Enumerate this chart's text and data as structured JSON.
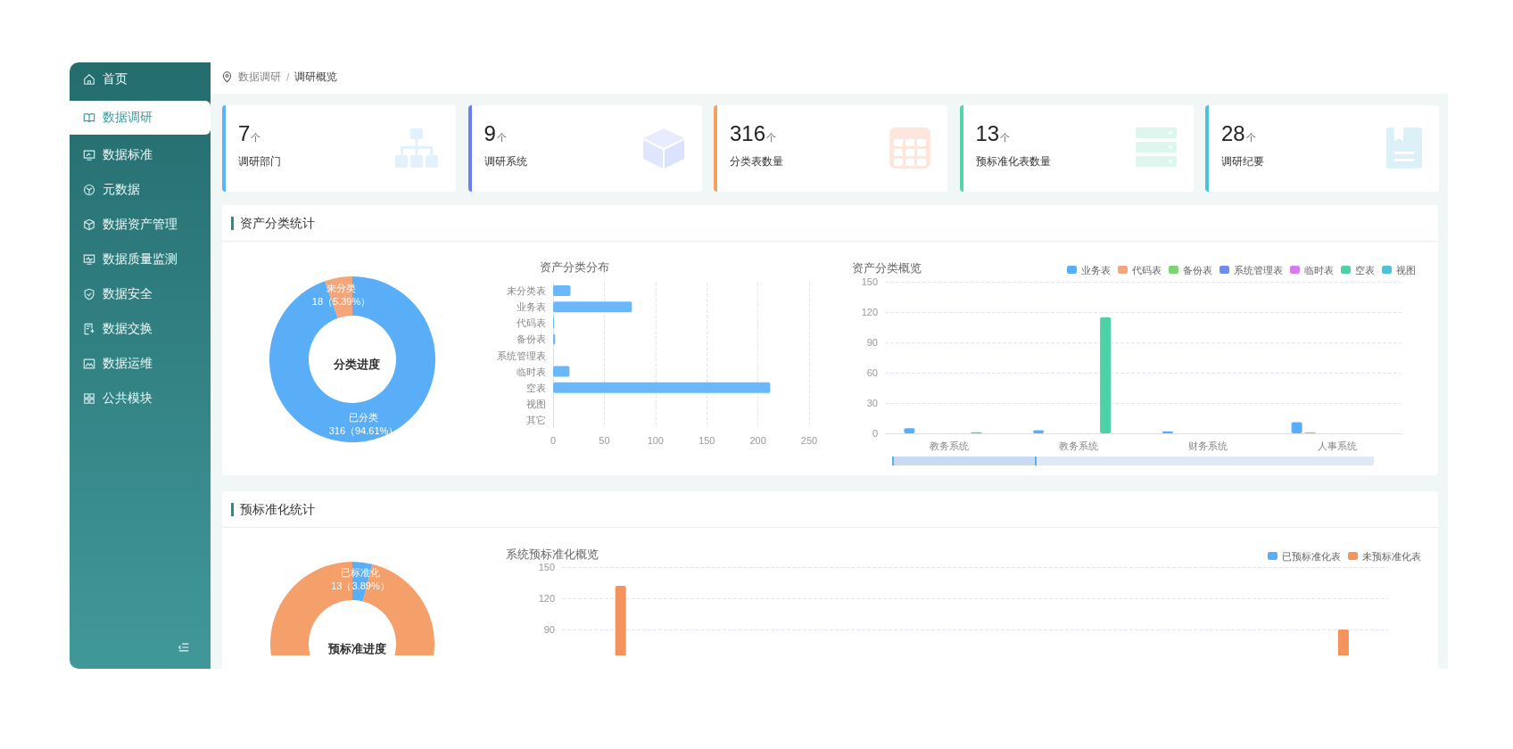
{
  "chart_data": [
    {
      "type": "other",
      "categories": [
        "首页",
        "数据调研",
        "数据标准",
        "元数据",
        "数据资产管理",
        "数据质量监测",
        "数据安全",
        "数据交换",
        "数据运维",
        "公共模块"
      ],
      "annotations": [
        "数据调研",
        "/",
        "调研概览"
      ]
    },
    {
      "type": "other",
      "categories": [
        "调研部门",
        "调研系统",
        "分类表数量",
        "预标准化表数量",
        "调研纪要"
      ],
      "values": [
        7,
        9,
        316,
        13,
        28
      ],
      "data_labels": true,
      "annotations": [
        "个"
      ]
    },
    {
      "type": "other",
      "title": "资产分类统计"
    },
    {
      "type": "donut",
      "title": "分类进度",
      "categories": [
        "已分类",
        "未分类"
      ],
      "values": [
        316,
        18
      ],
      "value_labels": [
        "316（94.61%）",
        "18（5.39%）"
      ],
      "colors": [
        "#5aaef8",
        "#f4a57a"
      ]
    },
    {
      "type": "bar",
      "orientation": "horizontal",
      "title": "资产分类分布",
      "categories": [
        "未分类表",
        "业务表",
        "代码表",
        "备份表",
        "系统管理表",
        "临时表",
        "空表",
        "视图",
        "其它"
      ],
      "values": [
        17,
        77,
        1,
        2,
        0,
        16,
        212,
        0,
        0
      ],
      "color": "#6ab8fa",
      "xlim": [
        0,
        250
      ],
      "xticks": [
        0,
        50,
        100,
        150,
        200,
        250
      ],
      "grid": "x"
    },
    {
      "type": "bar",
      "title": "资产分类概览",
      "categories": [
        "教务系统",
        "教务系统",
        "财务系统",
        "人事系统"
      ],
      "ylim": [
        0,
        150
      ],
      "yticks": [
        0,
        30,
        60,
        90,
        120,
        150
      ],
      "grid": "y",
      "legend": "top right",
      "series": [
        {
          "name": "业务表",
          "color": "#5aaef8",
          "values": [
            5,
            3,
            2,
            11
          ]
        },
        {
          "name": "代码表",
          "color": "#f4a57a",
          "values": [
            0,
            0,
            0,
            1
          ]
        },
        {
          "name": "备份表",
          "color": "#7ed46e",
          "values": [
            0,
            0,
            0,
            0
          ]
        },
        {
          "name": "系统管理表",
          "color": "#6c8cf0",
          "values": [
            0,
            0,
            0,
            0
          ]
        },
        {
          "name": "临时表",
          "color": "#d57bef",
          "values": [
            0,
            0,
            0,
            0
          ]
        },
        {
          "name": "空表",
          "color": "#4fd1a8",
          "values": [
            1,
            115,
            0,
            0
          ]
        },
        {
          "name": "视图",
          "color": "#4cc3d9",
          "values": [
            0,
            0,
            0,
            0
          ]
        }
      ]
    },
    {
      "type": "other",
      "title": "预标准化统计"
    },
    {
      "type": "donut",
      "title": "预标准进度",
      "categories": [
        "已标准化",
        null
      ],
      "values": [
        13,
        321
      ],
      "value_labels": [
        "13（3.89%）",
        null
      ],
      "colors": [
        "#5aaef8",
        "#f5a06b"
      ]
    },
    {
      "type": "bar",
      "title": "系统预标准化概览",
      "categories": [
        null,
        null,
        null,
        null,
        null,
        null,
        null,
        null
      ],
      "ylim": [
        0,
        150
      ],
      "yticks": [
        90,
        120,
        150
      ],
      "grid": "y",
      "legend": "top right",
      "series": [
        {
          "name": "已预标准化表",
          "color": "#5aaef8",
          "values": [
            null,
            null,
            null,
            null,
            null,
            null,
            null,
            null
          ]
        },
        {
          "name": "未预标准化表",
          "color": "#f5935e",
          "values": [
            132,
            null,
            null,
            null,
            null,
            null,
            null,
            90
          ]
        }
      ]
    }
  ]
}
